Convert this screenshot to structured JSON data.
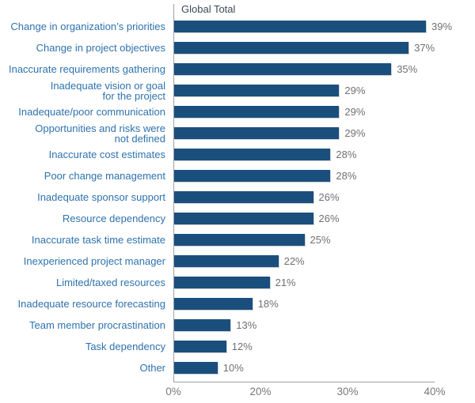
{
  "chart_data": {
    "type": "bar",
    "orientation": "horizontal",
    "title": "Global Total",
    "categories": [
      "Change in organization’s priorities",
      "Change in project objectives",
      "Inaccurate requirements gathering",
      "Inadequate vision or goal\nfor the project",
      "Inadequate/poor communication",
      "Opportunities and risks were\nnot defined",
      "Inaccurate cost estimates",
      "Poor change management",
      "Inadequate sponsor support",
      "Resource dependency",
      "Inaccurate task time estimate",
      "Inexperienced project manager",
      "Limited/taxed resources",
      "Inadequate resource forecasting",
      "Team member procrastination",
      "Task dependency",
      "Other"
    ],
    "values": [
      39,
      37,
      35,
      29,
      29,
      29,
      28,
      28,
      26,
      26,
      25,
      22,
      21,
      18,
      13,
      12,
      10
    ],
    "value_labels": [
      "39%",
      "37%",
      "35%",
      "29%",
      "29%",
      "29%",
      "28%",
      "28%",
      "26%",
      "26%",
      "25%",
      "22%",
      "21%",
      "18%",
      "13%",
      "12%",
      "10%"
    ],
    "x_tick_labels": [
      "0%",
      "20%",
      "30%",
      "40%"
    ],
    "x_tick_values": [
      0,
      20,
      30,
      40
    ],
    "legend_position": "none",
    "grid": false
  },
  "colors": {
    "bar": "#1a4f7d",
    "category_label": "#2e72ae",
    "value_label": "#6e7073",
    "axis_line": "#9da0a3",
    "tick_label": "#77787b",
    "title": "#3d4956",
    "background": "#ffffff"
  }
}
